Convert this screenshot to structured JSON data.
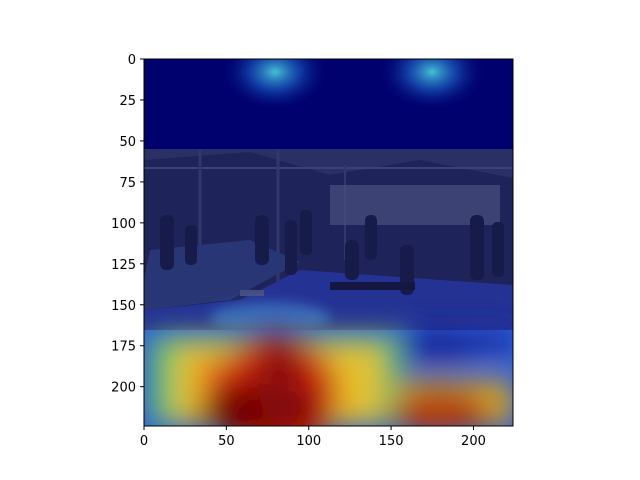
{
  "chart_data": {
    "type": "heatmap",
    "title": "",
    "xlabel": "",
    "ylabel": "",
    "xlim": [
      0,
      224
    ],
    "ylim": [
      224,
      0
    ],
    "x_ticks": [
      0,
      50,
      100,
      150,
      200
    ],
    "x_tick_labels": [
      "0",
      "50",
      "100",
      "150",
      "200"
    ],
    "y_ticks": [
      0,
      25,
      50,
      75,
      100,
      125,
      150,
      175,
      200
    ],
    "y_tick_labels": [
      "0",
      "25",
      "50",
      "75",
      "100",
      "125",
      "150",
      "175",
      "200"
    ],
    "grid": false,
    "colormap": "jet",
    "photo_band": {
      "y_start": 55,
      "y_end": 165
    },
    "hotspots": [
      {
        "x": 80,
        "y": 210,
        "intensity": 1.0
      },
      {
        "x": 60,
        "y": 215,
        "intensity": 0.95
      },
      {
        "x": 45,
        "y": 215,
        "intensity": 0.85
      },
      {
        "x": 100,
        "y": 200,
        "intensity": 0.75
      },
      {
        "x": 175,
        "y": 212,
        "intensity": 0.85
      },
      {
        "x": 205,
        "y": 215,
        "intensity": 0.75
      },
      {
        "x": 140,
        "y": 200,
        "intensity": 0.6
      },
      {
        "x": 80,
        "y": 175,
        "intensity": 0.65
      },
      {
        "x": 80,
        "y": 10,
        "intensity": 0.35
      },
      {
        "x": 175,
        "y": 10,
        "intensity": 0.35
      }
    ],
    "colors": {
      "cold": "#00006f",
      "cool": "#1a3cc8",
      "mid": "#4bbf7a",
      "warm": "#e3b51e",
      "hot": "#c8240e",
      "hottest": "#6e0000"
    }
  }
}
